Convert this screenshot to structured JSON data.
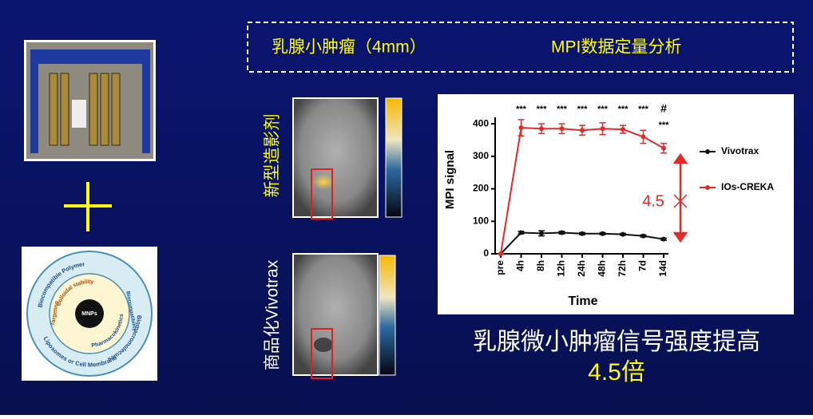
{
  "slide": {
    "header_left": "乳腺小肿瘤（4mm）",
    "header_right": "MPI数据定量分析",
    "label_new": "新型造影剂",
    "label_commercial": "商品化Vivotrax",
    "conclusion_line1": "乳腺微小肿瘤信号强度提高",
    "conclusion_line2": "4.5倍",
    "diagram": {
      "center": "MNPs",
      "outer": [
        "Biocompatible Polymer",
        "Biomacromolecules",
        "Liposomes or Cell Membrane"
      ],
      "inner": [
        "Colloidal stability",
        "Biocompatibility",
        "Pharmacokinetics",
        "Targeting"
      ]
    }
  },
  "chart_data": {
    "type": "line",
    "y_label": "MPI signal",
    "x_label": "Time",
    "categories": [
      "pre",
      "4h",
      "8h",
      "12h",
      "24h",
      "48h",
      "72h",
      "7d",
      "14d"
    ],
    "ylim": [
      0,
      420
    ],
    "yticks": [
      0,
      100,
      200,
      300,
      400
    ],
    "series": [
      {
        "name": "Vivotrax",
        "color": "#111111",
        "values": [
          0,
          65,
          63,
          65,
          62,
          62,
          60,
          55,
          45
        ],
        "errors": [
          0,
          4,
          8,
          4,
          3,
          3,
          3,
          3,
          3
        ]
      },
      {
        "name": "IOs-CREKA",
        "color": "#e52a2a",
        "values": [
          0,
          388,
          385,
          385,
          380,
          385,
          383,
          360,
          325
        ],
        "errors": [
          0,
          25,
          15,
          15,
          15,
          18,
          12,
          20,
          15
        ]
      }
    ],
    "annotations": [
      {
        "text": "***",
        "category": "4h"
      },
      {
        "text": "***",
        "category": "8h"
      },
      {
        "text": "***",
        "category": "12h"
      },
      {
        "text": "***",
        "category": "24h"
      },
      {
        "text": "***",
        "category": "48h"
      },
      {
        "text": "***",
        "category": "72h"
      },
      {
        "text": "***",
        "category": "7d"
      },
      {
        "text": "#",
        "category": "14d"
      },
      {
        "text": "***",
        "category": "14d"
      }
    ],
    "fold_label": "4.5"
  }
}
